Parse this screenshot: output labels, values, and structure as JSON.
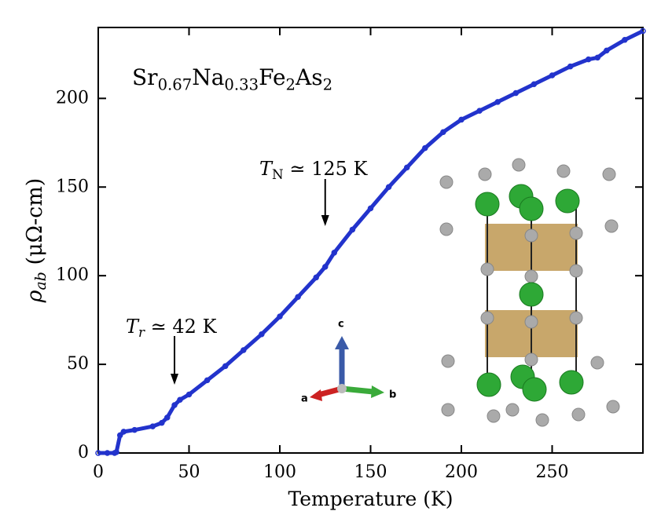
{
  "chart_data": {
    "type": "scatter",
    "xlabel": [
      {
        "text": "Temperature (K)"
      }
    ],
    "ylabel": [
      {
        "text": "ρ",
        "italic": true
      },
      {
        "text": "ab",
        "italic": true,
        "sub": true
      },
      {
        "text": " (μΩ-cm)"
      }
    ],
    "x": [
      0,
      5,
      9,
      10,
      12,
      14,
      20,
      30,
      35,
      38,
      42,
      45,
      50,
      60,
      70,
      80,
      90,
      100,
      110,
      120,
      125,
      130,
      140,
      150,
      160,
      170,
      180,
      190,
      200,
      210,
      220,
      230,
      240,
      250,
      260,
      270,
      275,
      280,
      290,
      300
    ],
    "values": [
      0,
      0,
      0,
      0.5,
      10,
      12,
      13,
      15,
      17,
      20,
      27,
      30,
      33,
      41,
      49,
      58,
      67,
      77,
      88,
      99,
      105,
      113,
      126,
      138,
      150,
      161,
      172,
      181,
      188,
      193,
      198,
      203,
      208,
      213,
      218,
      222,
      223,
      227,
      233,
      238
    ],
    "color": "#2233cc",
    "xlim": [
      0,
      300
    ],
    "ylim": [
      0,
      240
    ],
    "xticks": [
      0,
      50,
      100,
      150,
      200,
      250
    ],
    "yticks": [
      0,
      50,
      100,
      150,
      200
    ],
    "annotations": [
      {
        "parts": [
          {
            "text": "Sr"
          },
          {
            "text": "0.67",
            "sub": true
          },
          {
            "text": "Na"
          },
          {
            "text": "0.33",
            "sub": true
          },
          {
            "text": "Fe"
          },
          {
            "text": "2",
            "sub": true
          },
          {
            "text": "As"
          },
          {
            "text": "2",
            "sub": true
          }
        ]
      },
      {
        "x": 125,
        "parts": [
          {
            "text": "T",
            "italic": true
          },
          {
            "text": "N",
            "sub": true
          },
          {
            "text": " ≃ 125 K"
          }
        ]
      },
      {
        "x": 42,
        "parts": [
          {
            "text": "T",
            "italic": true
          },
          {
            "text": "r",
            "italic": true,
            "sub": true
          },
          {
            "text": " ≃ 42 K"
          }
        ]
      }
    ],
    "inset_axes": [
      "a",
      "b",
      "c"
    ]
  }
}
